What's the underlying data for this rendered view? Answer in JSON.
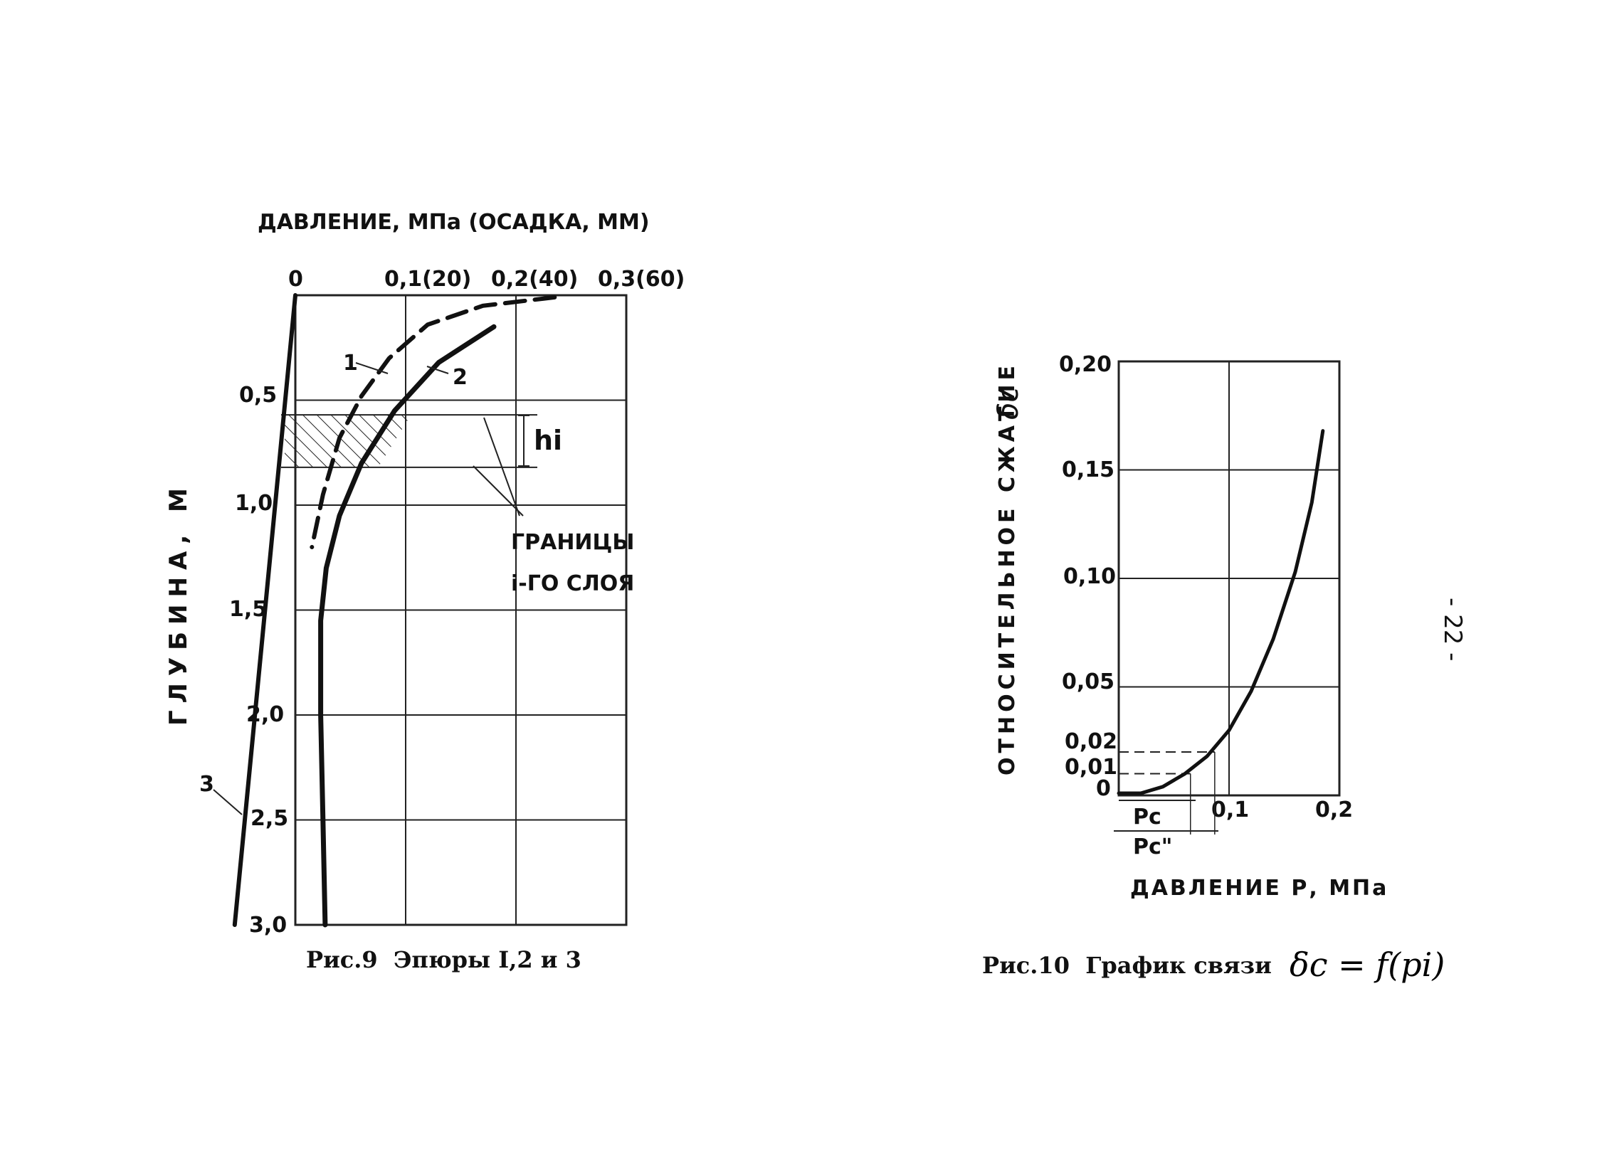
{
  "page_number": "- 22 -",
  "chart_data": [
    {
      "type": "line",
      "id": "fig9",
      "top_label": "ДАВЛЕНИЕ, МПа (ОСАДКА, ММ)",
      "ylabel": "ГЛУБИНА, М",
      "caption": "Рис.9  Эпюры I,2 и 3",
      "x_ticks": [
        "0",
        "0,1(20)",
        "0,2(40)",
        "0,3(60)"
      ],
      "y_ticks": [
        "0,5",
        "1,0",
        "1,5",
        "2,0",
        "2,5",
        "3,0"
      ],
      "xlim": [
        0,
        0.3
      ],
      "ylim": [
        0,
        3.0
      ],
      "annotations": {
        "curve1": "1",
        "curve2": "2",
        "curve3": "3",
        "layer_height": "hi",
        "boundary_label_1": "ГРАНИЦЫ",
        "boundary_label_2": "i-ГО СЛОЯ"
      },
      "series": [
        {
          "id": "1",
          "style": "dashed",
          "points": [
            [
              0.235,
              0.01
            ],
            [
              0.17,
              0.05
            ],
            [
              0.12,
              0.14
            ],
            [
              0.085,
              0.3
            ],
            [
              0.06,
              0.48
            ],
            [
              0.04,
              0.68
            ],
            [
              0.025,
              0.95
            ],
            [
              0.015,
              1.2
            ]
          ]
        },
        {
          "id": "2",
          "style": "solid",
          "points": [
            [
              0.18,
              0.15
            ],
            [
              0.13,
              0.32
            ],
            [
              0.09,
              0.55
            ],
            [
              0.06,
              0.8
            ],
            [
              0.04,
              1.05
            ],
            [
              0.028,
              1.3
            ],
            [
              0.023,
              1.55
            ],
            [
              0.023,
              2.0
            ],
            [
              0.025,
              2.5
            ],
            [
              0.027,
              3.0
            ]
          ]
        },
        {
          "id": "3",
          "style": "solid",
          "points": [
            [
              0,
              0
            ],
            [
              -0.055,
              3.0
            ]
          ]
        }
      ],
      "layer_band": [
        0.57,
        0.82
      ]
    },
    {
      "type": "line",
      "id": "fig10",
      "ylabel": "ОТНОСИТЕЛЬНОЕ СЖАТИЕ",
      "y_symbol": "δc",
      "xlabel": "ДАВЛЕНИЕ Р, МПа",
      "caption": "Рис.10  График связи",
      "formula": "δc = f(pi)",
      "x_ticks": [
        "0,1",
        "0,2"
      ],
      "y_ticks": [
        "0,20",
        "0,15",
        "0,10",
        "0,05",
        "0,02",
        "0,01",
        "0"
      ],
      "xlim": [
        0,
        0.2
      ],
      "ylim": [
        0,
        0.2
      ],
      "annotations": {
        "pc1": "Рс",
        "pc2": "Рс\""
      },
      "series": [
        {
          "id": "relation",
          "points": [
            [
              0.0,
              0.001
            ],
            [
              0.02,
              0.001
            ],
            [
              0.04,
              0.004
            ],
            [
              0.06,
              0.01
            ],
            [
              0.08,
              0.018
            ],
            [
              0.1,
              0.03
            ],
            [
              0.12,
              0.048
            ],
            [
              0.14,
              0.072
            ],
            [
              0.16,
              0.103
            ],
            [
              0.175,
              0.135
            ],
            [
              0.185,
              0.168
            ]
          ]
        }
      ],
      "guides": [
        {
          "y": 0.02,
          "x": 0.087
        },
        {
          "y": 0.01,
          "x": 0.065
        }
      ]
    }
  ]
}
